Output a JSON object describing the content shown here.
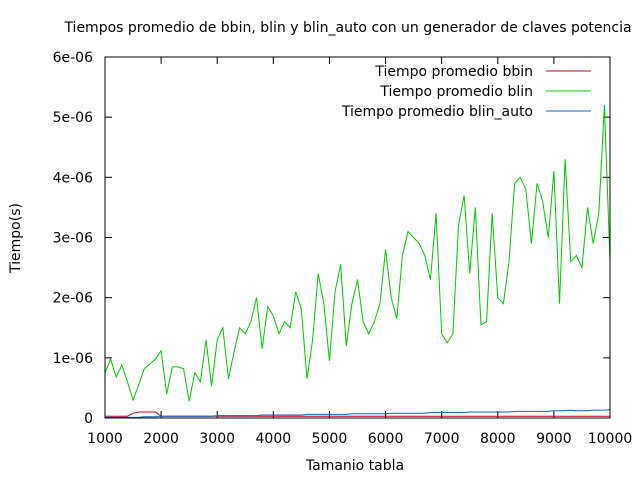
{
  "chart_data": {
    "type": "line",
    "title": "Tiempos promedio de bbin, blin y blin_auto con un generador de claves potencia",
    "xlabel": "Tamanio tabla",
    "ylabel": "Tiempo(s)",
    "xlim": [
      1000,
      10000
    ],
    "ylim": [
      0,
      6e-06
    ],
    "xticks": [
      1000,
      2000,
      3000,
      4000,
      5000,
      6000,
      7000,
      8000,
      9000,
      10000
    ],
    "xtick_labels": [
      "1000",
      "2000",
      "3000",
      "4000",
      "5000",
      "6000",
      "7000",
      "8000",
      "9000",
      "10000"
    ],
    "yticks": [
      0,
      1e-06,
      2e-06,
      3e-06,
      4e-06,
      5e-06,
      6e-06
    ],
    "ytick_labels": [
      "0",
      "1e-06",
      "2e-06",
      "3e-06",
      "4e-06",
      "5e-06",
      "6e-06"
    ],
    "grid": false,
    "legend_position": "top-right",
    "x": [
      1000,
      1100,
      1200,
      1300,
      1400,
      1500,
      1600,
      1700,
      1800,
      1900,
      2000,
      2100,
      2200,
      2300,
      2400,
      2500,
      2600,
      2700,
      2800,
      2900,
      3000,
      3100,
      3200,
      3300,
      3400,
      3500,
      3600,
      3700,
      3800,
      3900,
      4000,
      4100,
      4200,
      4300,
      4400,
      4500,
      4600,
      4700,
      4800,
      4900,
      5000,
      5100,
      5200,
      5300,
      5400,
      5500,
      5600,
      5700,
      5800,
      5900,
      6000,
      6100,
      6200,
      6300,
      6400,
      6500,
      6600,
      6700,
      6800,
      6900,
      7000,
      7100,
      7200,
      7300,
      7400,
      7500,
      7600,
      7700,
      7800,
      7900,
      8000,
      8100,
      8200,
      8300,
      8400,
      8500,
      8600,
      8700,
      8800,
      8900,
      9000,
      9100,
      9200,
      9300,
      9400,
      9500,
      9600,
      9700,
      9800,
      9900,
      10000
    ],
    "series": [
      {
        "name": "Tiempo promedio bbin",
        "color": "#c8001e",
        "values": [
          3e-08,
          3e-08,
          3e-08,
          3e-08,
          3e-08,
          8e-08,
          1e-07,
          1e-07,
          1e-07,
          1e-07,
          3e-08,
          3e-08,
          3e-08,
          3e-08,
          3e-08,
          3e-08,
          3e-08,
          3e-08,
          3e-08,
          3e-08,
          3e-08,
          3e-08,
          3e-08,
          3e-08,
          3e-08,
          3e-08,
          3e-08,
          3e-08,
          3e-08,
          3e-08,
          3e-08,
          3e-08,
          3e-08,
          3e-08,
          3e-08,
          3e-08,
          3e-08,
          3e-08,
          3e-08,
          3e-08,
          3e-08,
          3e-08,
          3e-08,
          3e-08,
          3e-08,
          3e-08,
          3e-08,
          3e-08,
          3e-08,
          3e-08,
          3e-08,
          3e-08,
          3e-08,
          3e-08,
          3e-08,
          3e-08,
          3e-08,
          3e-08,
          3e-08,
          3e-08,
          3e-08,
          3e-08,
          3e-08,
          3e-08,
          3e-08,
          3e-08,
          3e-08,
          3e-08,
          3e-08,
          3e-08,
          3e-08,
          3e-08,
          3e-08,
          3e-08,
          3e-08,
          3e-08,
          3e-08,
          3e-08,
          3e-08,
          3e-08,
          3e-08,
          3e-08,
          3e-08,
          3e-08,
          3e-08,
          3e-08,
          3e-08,
          3e-08,
          3e-08,
          3e-08,
          3e-08
        ]
      },
      {
        "name": "Tiempo promedio blin",
        "color": "#00c800",
        "values": [
          7.5e-07,
          9.8e-07,
          6.8e-07,
          8.8e-07,
          6e-07,
          3e-07,
          5.5e-07,
          8.2e-07,
          9e-07,
          9.8e-07,
          1.12e-06,
          4e-07,
          8.5e-07,
          8.5e-07,
          8.2e-07,
          2.8e-07,
          7.5e-07,
          6e-07,
          1.3e-06,
          5.3e-07,
          1.3e-06,
          1.5e-06,
          6.5e-07,
          1.1e-06,
          1.5e-06,
          1.4e-06,
          1.6e-06,
          2e-06,
          1.15e-06,
          1.85e-06,
          1.7e-06,
          1.4e-06,
          1.6e-06,
          1.5e-06,
          2.1e-06,
          1.8e-06,
          6.5e-07,
          1.3e-06,
          2.4e-06,
          1.9e-06,
          9.5e-07,
          2.1e-06,
          2.55e-06,
          1.2e-06,
          1.9e-06,
          2.3e-06,
          1.6e-06,
          1.4e-06,
          1.6e-06,
          1.9e-06,
          2.8e-06,
          2e-06,
          1.65e-06,
          2.7e-06,
          3.1e-06,
          3e-06,
          2.9e-06,
          2.7e-06,
          2.3e-06,
          3.4e-06,
          1.4e-06,
          1.25e-06,
          1.4e-06,
          3.2e-06,
          3.7e-06,
          2.4e-06,
          3.5e-06,
          1.55e-06,
          1.6e-06,
          3.4e-06,
          2e-06,
          1.9e-06,
          2.6e-06,
          3.9e-06,
          4e-06,
          3.8e-06,
          2.9e-06,
          3.9e-06,
          3.6e-06,
          3e-06,
          4.1e-06,
          1.9e-06,
          4.3e-06,
          2.6e-06,
          2.7e-06,
          2.5e-06,
          3.5e-06,
          2.9e-06,
          3.4e-06,
          5.2e-06,
          2.6e-06
        ]
      },
      {
        "name": "Tiempo promedio blin_auto",
        "color": "#0064c8",
        "values": [
          1e-08,
          1e-08,
          1e-08,
          1e-08,
          1e-08,
          1e-08,
          1e-08,
          2e-08,
          2e-08,
          2e-08,
          3e-08,
          3e-08,
          3e-08,
          3e-08,
          3e-08,
          3e-08,
          3e-08,
          3e-08,
          3e-08,
          3e-08,
          4e-08,
          4e-08,
          4e-08,
          4e-08,
          4e-08,
          4e-08,
          4e-08,
          4e-08,
          5e-08,
          5e-08,
          5e-08,
          5e-08,
          5e-08,
          5e-08,
          5e-08,
          5e-08,
          6e-08,
          6e-08,
          6e-08,
          6e-08,
          6e-08,
          6e-08,
          6e-08,
          6e-08,
          7e-08,
          7e-08,
          7e-08,
          7e-08,
          7e-08,
          7e-08,
          7e-08,
          8e-08,
          8e-08,
          8e-08,
          8e-08,
          8e-08,
          8e-08,
          8e-08,
          9e-08,
          9e-08,
          9e-08,
          9e-08,
          9e-08,
          9e-08,
          9e-08,
          1e-07,
          1e-07,
          1e-07,
          1e-07,
          1e-07,
          1e-07,
          1e-07,
          1e-07,
          1.1e-07,
          1.1e-07,
          1.1e-07,
          1.1e-07,
          1.1e-07,
          1.1e-07,
          1.1e-07,
          1.2e-07,
          1.2e-07,
          1.2e-07,
          1.3e-07,
          1.2e-07,
          1.2e-07,
          1.2e-07,
          1.3e-07,
          1.3e-07,
          1.3e-07,
          1.4e-07
        ]
      }
    ]
  }
}
